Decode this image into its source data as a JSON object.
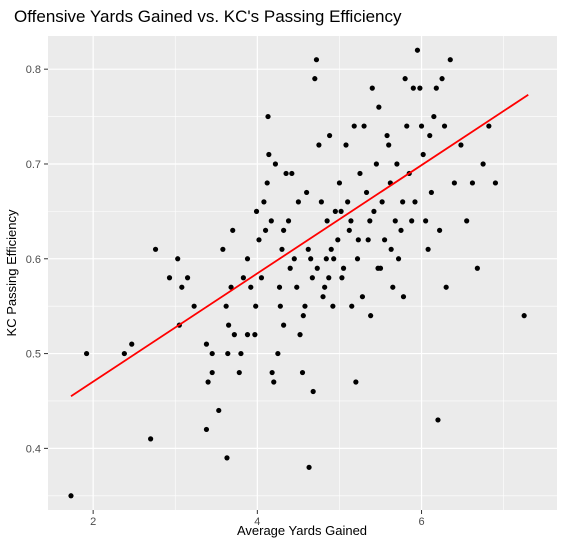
{
  "chart_data": {
    "type": "scatter",
    "title": "Offensive Yards Gained vs. KC's Passing Efficiency",
    "xlabel": "Average Yards Gained",
    "ylabel": "KC Passing Efficiency",
    "xlim": [
      1.45,
      7.65
    ],
    "ylim": [
      0.335,
      0.835
    ],
    "xticks": [
      2,
      4,
      6
    ],
    "xtick_labels": [
      "2",
      "4",
      "6"
    ],
    "yticks": [
      0.4,
      0.5,
      0.6,
      0.7,
      0.8
    ],
    "ytick_labels": [
      "0.4",
      "0.5",
      "0.6",
      "0.7",
      "0.8"
    ],
    "grid": true,
    "legend": "none",
    "colors": {
      "panel_background": "#ebebeb",
      "grid": "#ffffff",
      "points": "#000000",
      "trend_line": "#ff0000"
    },
    "trend_line": {
      "x": [
        1.73,
        7.3
      ],
      "y": [
        0.455,
        0.773
      ]
    },
    "points": [
      [
        1.73,
        0.35
      ],
      [
        1.92,
        0.5
      ],
      [
        2.38,
        0.5
      ],
      [
        2.47,
        0.51
      ],
      [
        2.7,
        0.41
      ],
      [
        2.76,
        0.61
      ],
      [
        2.93,
        0.58
      ],
      [
        3.05,
        0.53
      ],
      [
        3.03,
        0.6
      ],
      [
        3.08,
        0.57
      ],
      [
        3.15,
        0.58
      ],
      [
        3.23,
        0.55
      ],
      [
        3.38,
        0.42
      ],
      [
        3.38,
        0.51
      ],
      [
        3.4,
        0.47
      ],
      [
        3.45,
        0.5
      ],
      [
        3.45,
        0.48
      ],
      [
        3.53,
        0.44
      ],
      [
        3.58,
        0.61
      ],
      [
        3.62,
        0.55
      ],
      [
        3.63,
        0.39
      ],
      [
        3.64,
        0.5
      ],
      [
        3.65,
        0.53
      ],
      [
        3.68,
        0.57
      ],
      [
        3.72,
        0.52
      ],
      [
        3.78,
        0.48
      ],
      [
        3.8,
        0.5
      ],
      [
        3.83,
        0.58
      ],
      [
        3.88,
        0.6
      ],
      [
        3.92,
        0.57
      ],
      [
        3.97,
        0.52
      ],
      [
        3.99,
        0.65
      ],
      [
        4.02,
        0.62
      ],
      [
        4.05,
        0.58
      ],
      [
        4.08,
        0.66
      ],
      [
        4.1,
        0.63
      ],
      [
        4.13,
        0.75
      ],
      [
        4.14,
        0.71
      ],
      [
        4.17,
        0.64
      ],
      [
        4.2,
        0.47
      ],
      [
        4.22,
        0.7
      ],
      [
        4.25,
        0.5
      ],
      [
        4.28,
        0.55
      ],
      [
        4.3,
        0.61
      ],
      [
        4.32,
        0.53
      ],
      [
        4.35,
        0.69
      ],
      [
        4.38,
        0.64
      ],
      [
        4.4,
        0.59
      ],
      [
        4.45,
        0.6
      ],
      [
        4.48,
        0.57
      ],
      [
        4.52,
        0.52
      ],
      [
        4.55,
        0.48
      ],
      [
        4.58,
        0.55
      ],
      [
        4.6,
        0.67
      ],
      [
        4.63,
        0.38
      ],
      [
        4.65,
        0.6
      ],
      [
        4.68,
        0.46
      ],
      [
        4.7,
        0.79
      ],
      [
        4.72,
        0.81
      ],
      [
        4.75,
        0.72
      ],
      [
        4.78,
        0.66
      ],
      [
        4.8,
        0.56
      ],
      [
        4.82,
        0.57
      ],
      [
        4.85,
        0.64
      ],
      [
        4.88,
        0.73
      ],
      [
        4.9,
        0.61
      ],
      [
        4.92,
        0.55
      ],
      [
        4.95,
        0.65
      ],
      [
        4.98,
        0.62
      ],
      [
        5.0,
        0.68
      ],
      [
        5.03,
        0.58
      ],
      [
        5.05,
        0.59
      ],
      [
        5.08,
        0.72
      ],
      [
        5.1,
        0.66
      ],
      [
        5.12,
        0.63
      ],
      [
        5.15,
        0.55
      ],
      [
        5.18,
        0.74
      ],
      [
        5.2,
        0.47
      ],
      [
        5.22,
        0.6
      ],
      [
        5.25,
        0.69
      ],
      [
        5.28,
        0.56
      ],
      [
        5.3,
        0.74
      ],
      [
        5.33,
        0.67
      ],
      [
        5.35,
        0.62
      ],
      [
        5.38,
        0.54
      ],
      [
        5.4,
        0.78
      ],
      [
        5.42,
        0.65
      ],
      [
        5.45,
        0.7
      ],
      [
        5.48,
        0.76
      ],
      [
        5.5,
        0.59
      ],
      [
        5.52,
        0.66
      ],
      [
        5.55,
        0.62
      ],
      [
        5.58,
        0.73
      ],
      [
        5.6,
        0.72
      ],
      [
        5.62,
        0.68
      ],
      [
        5.65,
        0.57
      ],
      [
        5.68,
        0.64
      ],
      [
        5.7,
        0.7
      ],
      [
        5.72,
        0.6
      ],
      [
        5.75,
        0.63
      ],
      [
        5.78,
        0.56
      ],
      [
        5.8,
        0.79
      ],
      [
        5.82,
        0.74
      ],
      [
        5.85,
        0.69
      ],
      [
        5.88,
        0.64
      ],
      [
        5.9,
        0.78
      ],
      [
        5.92,
        0.66
      ],
      [
        5.95,
        0.82
      ],
      [
        5.98,
        0.78
      ],
      [
        6.0,
        0.74
      ],
      [
        6.02,
        0.71
      ],
      [
        6.05,
        0.64
      ],
      [
        6.08,
        0.61
      ],
      [
        6.1,
        0.73
      ],
      [
        6.12,
        0.67
      ],
      [
        6.15,
        0.75
      ],
      [
        6.18,
        0.78
      ],
      [
        6.2,
        0.43
      ],
      [
        6.22,
        0.63
      ],
      [
        6.25,
        0.79
      ],
      [
        6.28,
        0.74
      ],
      [
        6.3,
        0.57
      ],
      [
        6.35,
        0.81
      ],
      [
        6.4,
        0.68
      ],
      [
        6.48,
        0.72
      ],
      [
        6.55,
        0.64
      ],
      [
        6.62,
        0.68
      ],
      [
        6.68,
        0.59
      ],
      [
        6.75,
        0.7
      ],
      [
        6.82,
        0.74
      ],
      [
        6.9,
        0.68
      ],
      [
        7.25,
        0.54
      ],
      [
        3.7,
        0.63
      ],
      [
        3.88,
        0.52
      ],
      [
        4.18,
        0.48
      ],
      [
        4.42,
        0.69
      ],
      [
        4.62,
        0.61
      ],
      [
        4.73,
        0.59
      ],
      [
        4.87,
        0.58
      ],
      [
        5.02,
        0.65
      ],
      [
        5.23,
        0.62
      ],
      [
        5.37,
        0.64
      ],
      [
        5.47,
        0.59
      ],
      [
        5.63,
        0.61
      ],
      [
        5.77,
        0.66
      ],
      [
        4.32,
        0.63
      ],
      [
        4.56,
        0.54
      ],
      [
        4.84,
        0.6
      ],
      [
        3.98,
        0.55
      ],
      [
        4.12,
        0.68
      ],
      [
        4.27,
        0.57
      ],
      [
        4.5,
        0.66
      ],
      [
        4.67,
        0.58
      ],
      [
        4.93,
        0.6
      ],
      [
        5.14,
        0.64
      ]
    ]
  }
}
